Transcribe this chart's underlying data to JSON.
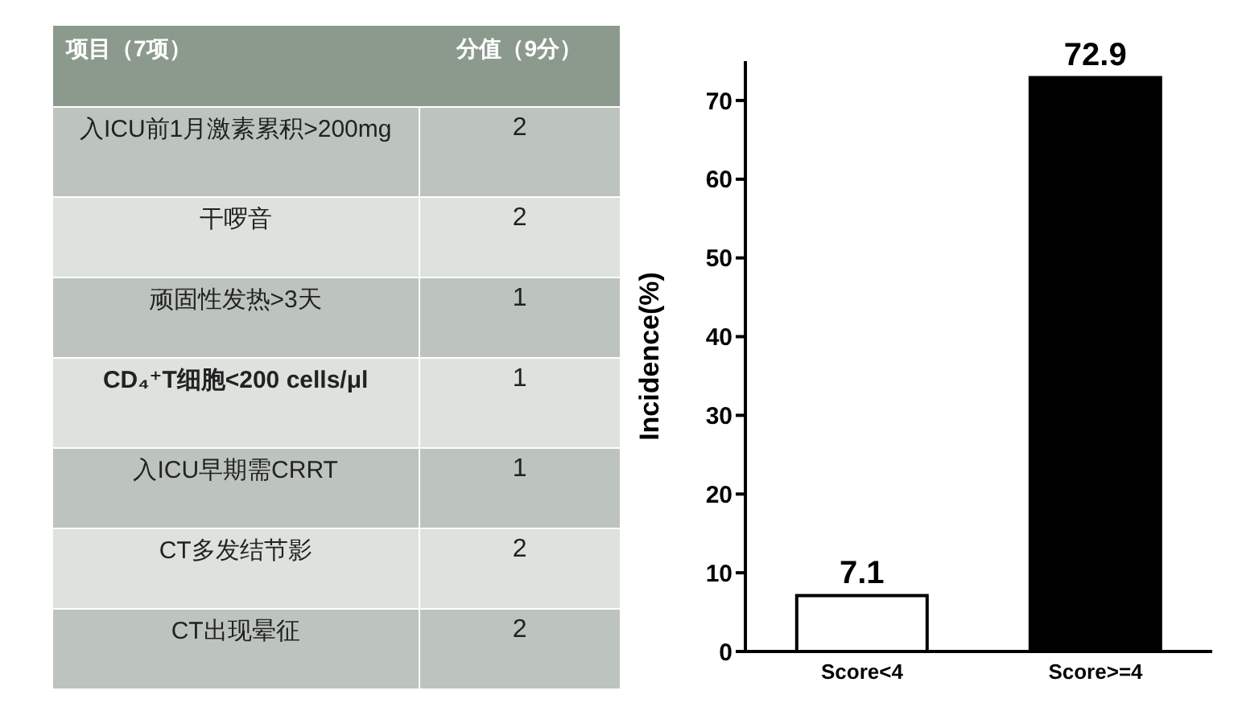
{
  "chart_data": [
    {
      "type": "other",
      "xlabel": "项目（7项）",
      "ylabel": "分值（9分）",
      "categories": [
        "入ICU前1月激素累积>200mg",
        "干啰音",
        "顽固性发热>3天",
        "CD₄⁺T细胞<200 cells/μl",
        "入ICU早期需CRRT",
        "CT多发结节影",
        "CT出现晕征"
      ],
      "values": [
        2,
        2,
        1,
        1,
        1,
        2,
        2
      ],
      "data_labels": true
    },
    {
      "type": "bar",
      "ylabel": "Incidence(%)",
      "categories": [
        "Score<4",
        "Score>=4"
      ],
      "values": [
        7.1,
        72.9
      ],
      "colors": [
        "#ffffff",
        "#000000"
      ],
      "ylim": [
        0,
        75
      ],
      "yticks": [
        0,
        10,
        20,
        30,
        40,
        50,
        60,
        70
      ],
      "data_labels": true,
      "grid": false,
      "legend": false
    }
  ]
}
